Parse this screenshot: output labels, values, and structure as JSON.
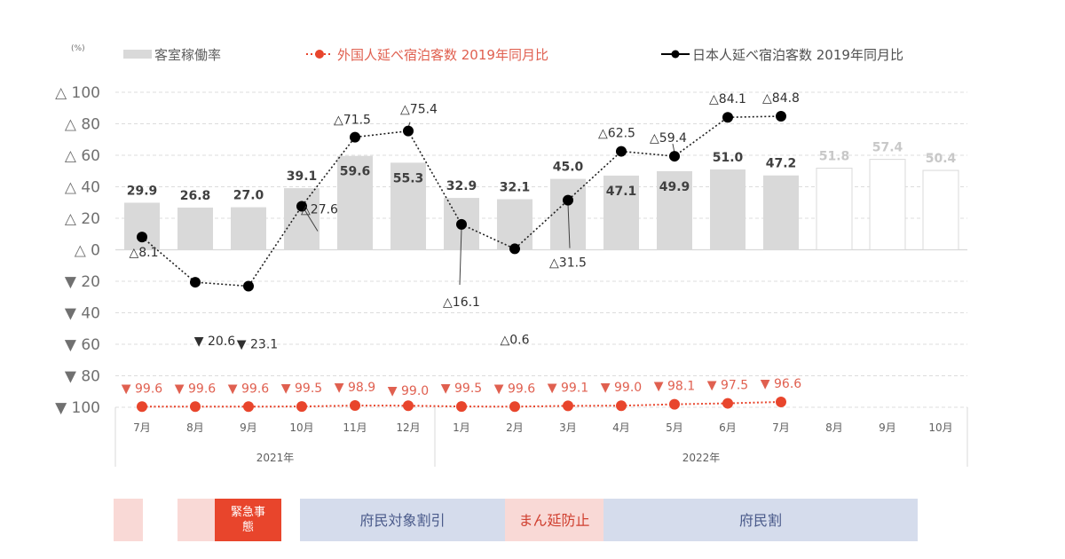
{
  "chart_data": {
    "type": "bar+line",
    "unit_label": "(%)",
    "legend": [
      {
        "name": "客室稼働率",
        "kind": "bar",
        "color": "#d9d9d9"
      },
      {
        "name": "外国人延べ宿泊客数 2019年同月比",
        "kind": "dotted-line-marker",
        "color": "#e8452c"
      },
      {
        "name": "日本人延べ宿泊客数 2019年同月比",
        "kind": "line-marker",
        "color": "#000000"
      }
    ],
    "legend_position": "top",
    "categories": [
      "7月",
      "8月",
      "9月",
      "10月",
      "11月",
      "12月",
      "1月",
      "2月",
      "3月",
      "4月",
      "5月",
      "6月",
      "7月",
      "8月",
      "9月",
      "10月"
    ],
    "year_groups": [
      {
        "label": "2021年",
        "start": 0,
        "end": 5
      },
      {
        "label": "2022年",
        "start": 6,
        "end": 15
      }
    ],
    "ylim": [
      -100,
      100
    ],
    "yticks": [
      {
        "value": 100,
        "label": "△ 100"
      },
      {
        "value": 80,
        "label": "△ 80"
      },
      {
        "value": 60,
        "label": "△ 60"
      },
      {
        "value": 40,
        "label": "△ 40"
      },
      {
        "value": 20,
        "label": "△ 20"
      },
      {
        "value": 0,
        "label": "△ 0"
      },
      {
        "value": -20,
        "label": "▼ 20"
      },
      {
        "value": -40,
        "label": "▼ 40"
      },
      {
        "value": -60,
        "label": "▼ 60"
      },
      {
        "value": -80,
        "label": "▼ 80"
      },
      {
        "value": -100,
        "label": "▼ 100"
      }
    ],
    "grid": true,
    "series": [
      {
        "name": "客室稼働率",
        "type": "bar",
        "values": [
          29.9,
          26.8,
          27.0,
          39.1,
          59.6,
          55.3,
          32.9,
          32.1,
          45.0,
          47.1,
          49.9,
          51.0,
          47.2,
          51.8,
          57.4,
          50.4
        ],
        "labels": [
          "29.9",
          "26.8",
          "27.0",
          "39.1",
          "59.6",
          "55.3",
          "32.9",
          "32.1",
          "45.0",
          "47.1",
          "49.9",
          "51.0",
          "47.2",
          "51.8",
          "57.4",
          "50.4"
        ],
        "forecast_from_index": 13
      },
      {
        "name": "日本人延べ宿泊客数 2019年同月比",
        "type": "line",
        "values": [
          8.1,
          -20.6,
          -23.1,
          27.6,
          71.5,
          75.4,
          16.1,
          0.6,
          31.5,
          62.5,
          59.4,
          84.1,
          84.8
        ],
        "labels": [
          "△8.1",
          "▼ 20.6",
          "▼ 23.1",
          "△27.6",
          "△71.5",
          "△75.4",
          "△16.1",
          "△0.6",
          "△31.5",
          "△62.5",
          "△59.4",
          "△84.1",
          "△84.8"
        ]
      },
      {
        "name": "外国人延べ宿泊客数 2019年同月比",
        "type": "line",
        "values": [
          -99.6,
          -99.6,
          -99.6,
          -99.5,
          -98.9,
          -99.0,
          -99.5,
          -99.6,
          -99.1,
          -99.0,
          -98.1,
          -97.5,
          -96.6
        ],
        "labels": [
          "▼ 99.6",
          "▼ 99.6",
          "▼ 99.6",
          "▼ 99.5",
          "▼ 98.9",
          "▼ 99.0",
          "▼ 99.5",
          "▼ 99.6",
          "▼ 99.1",
          "▼ 99.0",
          "▼ 98.1",
          "▼ 97.5",
          "▼ 96.6"
        ]
      }
    ]
  },
  "period_bands": [
    {
      "label": "",
      "from": 0,
      "to": 0.55,
      "color": "#f9d9d6",
      "text_color": "#ffffff"
    },
    {
      "label": "",
      "from": 1.2,
      "to": 1.9,
      "color": "#f9d9d6",
      "text_color": "#ffffff"
    },
    {
      "label": "緊急事態",
      "from": 1.9,
      "to": 3.15,
      "color": "#e8452c",
      "text_color": "#ffffff"
    },
    {
      "label": "府民対象割引",
      "from": 3.5,
      "to": 7.35,
      "color": "#d5dcec",
      "text_color": "#4a5a8a"
    },
    {
      "label": "まん延防止",
      "from": 7.35,
      "to": 9.2,
      "color": "#f9d9d6",
      "text_color": "#d04030"
    },
    {
      "label": "府民割",
      "from": 9.2,
      "to": 15.1,
      "color": "#d5dcec",
      "text_color": "#4a5a8a"
    }
  ]
}
